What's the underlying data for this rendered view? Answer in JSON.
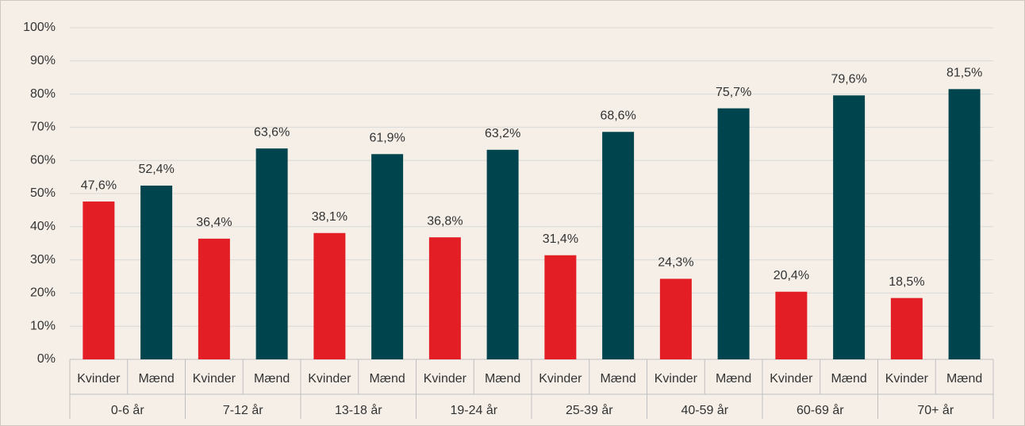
{
  "chart_data": {
    "type": "bar",
    "categories": [
      "0-6 år",
      "7-12 år",
      "13-18 år",
      "19-24 år",
      "25-39 år",
      "40-59 år",
      "60-69 år",
      "70+ år"
    ],
    "series": [
      {
        "name": "Kvinder",
        "color": "#e31e24",
        "values": [
          47.6,
          36.4,
          38.1,
          36.8,
          31.4,
          24.3,
          20.4,
          18.5
        ],
        "value_labels": [
          "47,6%",
          "36,4%",
          "38,1%",
          "36,8%",
          "31,4%",
          "24,3%",
          "20,4%",
          "18,5%"
        ]
      },
      {
        "name": "Mænd",
        "color": "#00444d",
        "values": [
          52.4,
          63.6,
          61.9,
          63.2,
          68.6,
          75.7,
          79.6,
          81.5
        ],
        "value_labels": [
          "52,4%",
          "63,6%",
          "61,9%",
          "63,2%",
          "68,6%",
          "75,7%",
          "79,6%",
          "81,5%"
        ]
      }
    ],
    "ylim": [
      0,
      100
    ],
    "yticks": [
      {
        "value": 0,
        "label": "0%"
      },
      {
        "value": 10,
        "label": "10%"
      },
      {
        "value": 20,
        "label": "20%"
      },
      {
        "value": 30,
        "label": "30%"
      },
      {
        "value": 40,
        "label": "40%"
      },
      {
        "value": 50,
        "label": "50%"
      },
      {
        "value": 60,
        "label": "60%"
      },
      {
        "value": 70,
        "label": "70%"
      },
      {
        "value": 80,
        "label": "80%"
      },
      {
        "value": 90,
        "label": "90%"
      },
      {
        "value": 100,
        "label": "100%"
      }
    ],
    "grid": true
  }
}
